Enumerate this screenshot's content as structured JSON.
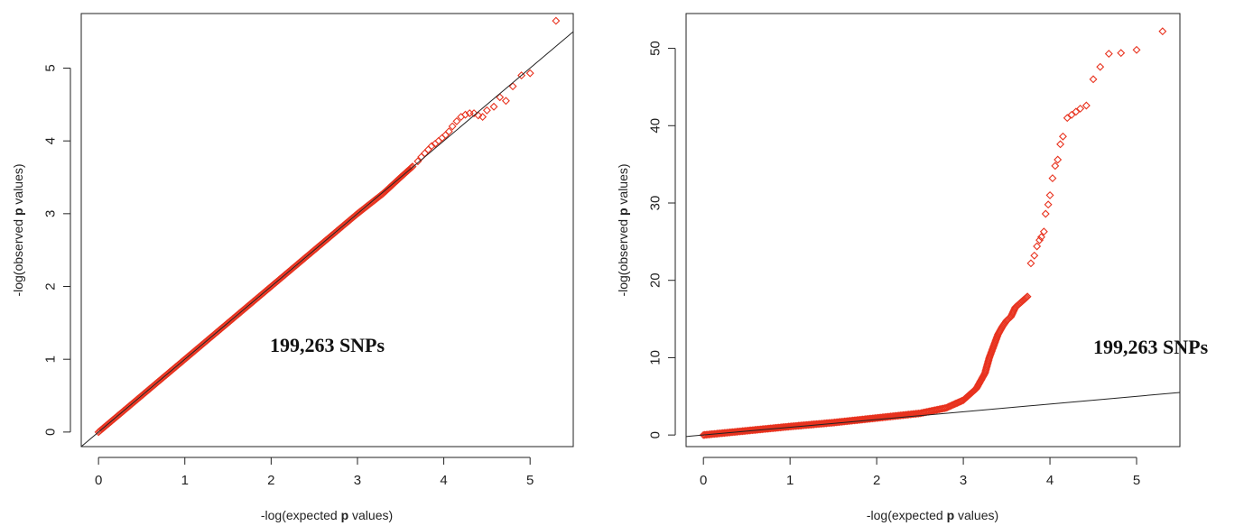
{
  "chart_data": [
    {
      "type": "scatter",
      "panel": "left",
      "title": "",
      "xlabel": "-log(expected p values)",
      "ylabel": "-log(observed p values)",
      "xlabel_parts": [
        "-log(expected ",
        "p",
        " values)"
      ],
      "ylabel_parts": [
        "-log(observed ",
        "p",
        " values)"
      ],
      "xlim": [
        -0.2,
        5.5
      ],
      "ylim": [
        -0.2,
        5.75
      ],
      "xticks": [
        0,
        1,
        2,
        3,
        4,
        5
      ],
      "yticks": [
        0,
        1,
        2,
        3,
        4,
        5
      ],
      "grid": false,
      "annotation": "199,263 SNPs",
      "annotation_pos": [
        2.65,
        1.1
      ],
      "reference_line": {
        "slope": 1,
        "intercept": 0
      },
      "point_color": "#e8321e",
      "series": [
        {
          "dense_trend": [
            [
              0,
              0
            ],
            [
              1,
              1
            ],
            [
              2,
              2
            ],
            [
              3,
              3
            ],
            [
              3.3,
              3.28
            ],
            [
              3.5,
              3.5
            ],
            [
              3.65,
              3.66
            ]
          ],
          "points": [
            [
              3.7,
              3.72
            ],
            [
              3.74,
              3.78
            ],
            [
              3.78,
              3.83
            ],
            [
              3.82,
              3.88
            ],
            [
              3.86,
              3.93
            ],
            [
              3.9,
              3.96
            ],
            [
              3.94,
              4.0
            ],
            [
              3.98,
              4.04
            ],
            [
              4.02,
              4.08
            ],
            [
              4.06,
              4.13
            ],
            [
              4.1,
              4.2
            ],
            [
              4.15,
              4.27
            ],
            [
              4.2,
              4.33
            ],
            [
              4.25,
              4.36
            ],
            [
              4.3,
              4.38
            ],
            [
              4.35,
              4.38
            ],
            [
              4.4,
              4.35
            ],
            [
              4.45,
              4.33
            ],
            [
              4.5,
              4.42
            ],
            [
              4.58,
              4.47
            ],
            [
              4.65,
              4.6
            ],
            [
              4.72,
              4.55
            ],
            [
              4.8,
              4.75
            ],
            [
              4.9,
              4.9
            ],
            [
              5.0,
              4.93
            ],
            [
              5.3,
              5.65
            ]
          ]
        }
      ]
    },
    {
      "type": "scatter",
      "panel": "right",
      "title": "",
      "xlabel": "-log(expected p values)",
      "ylabel": "-log(observed p values)",
      "xlabel_parts": [
        "-log(expected ",
        "p",
        " values)"
      ],
      "ylabel_parts": [
        "-log(observed ",
        "p",
        " values)"
      ],
      "xlim": [
        -0.2,
        5.5
      ],
      "ylim": [
        -1.5,
        54.5
      ],
      "xticks": [
        0,
        1,
        2,
        3,
        4,
        5
      ],
      "yticks": [
        0,
        10,
        20,
        30,
        40,
        50
      ],
      "grid": false,
      "annotation": "199,263 SNPs",
      "annotation_pos": [
        4.5,
        10.5
      ],
      "reference_line": {
        "slope": 1,
        "intercept": 0
      },
      "point_color": "#e8321e",
      "series": [
        {
          "dense_trend": [
            [
              0,
              0
            ],
            [
              0.5,
              0.55
            ],
            [
              1,
              1.1
            ],
            [
              1.5,
              1.6
            ],
            [
              2,
              2.2
            ],
            [
              2.5,
              2.8
            ],
            [
              2.8,
              3.5
            ],
            [
              3.0,
              4.5
            ],
            [
              3.15,
              6
            ],
            [
              3.25,
              8
            ],
            [
              3.3,
              10
            ],
            [
              3.35,
              11.5
            ],
            [
              3.4,
              13
            ],
            [
              3.45,
              14
            ],
            [
              3.5,
              14.8
            ],
            [
              3.55,
              15.3
            ],
            [
              3.6,
              16.5
            ],
            [
              3.65,
              17
            ],
            [
              3.7,
              17.5
            ],
            [
              3.75,
              18
            ]
          ],
          "points": [
            [
              3.78,
              22.2
            ],
            [
              3.82,
              23.2
            ],
            [
              3.85,
              24.4
            ],
            [
              3.88,
              25.2
            ],
            [
              3.9,
              25.6
            ],
            [
              3.93,
              26.3
            ],
            [
              3.95,
              28.6
            ],
            [
              3.98,
              29.8
            ],
            [
              4.0,
              31
            ],
            [
              4.03,
              33.2
            ],
            [
              4.06,
              34.8
            ],
            [
              4.09,
              35.6
            ],
            [
              4.12,
              37.6
            ],
            [
              4.15,
              38.6
            ],
            [
              4.2,
              41
            ],
            [
              4.25,
              41.4
            ],
            [
              4.3,
              41.8
            ],
            [
              4.35,
              42.2
            ],
            [
              4.42,
              42.6
            ],
            [
              4.5,
              46
            ],
            [
              4.58,
              47.6
            ],
            [
              4.68,
              49.3
            ],
            [
              4.82,
              49.4
            ],
            [
              5.0,
              49.8
            ],
            [
              5.3,
              52.2
            ]
          ]
        }
      ]
    }
  ]
}
